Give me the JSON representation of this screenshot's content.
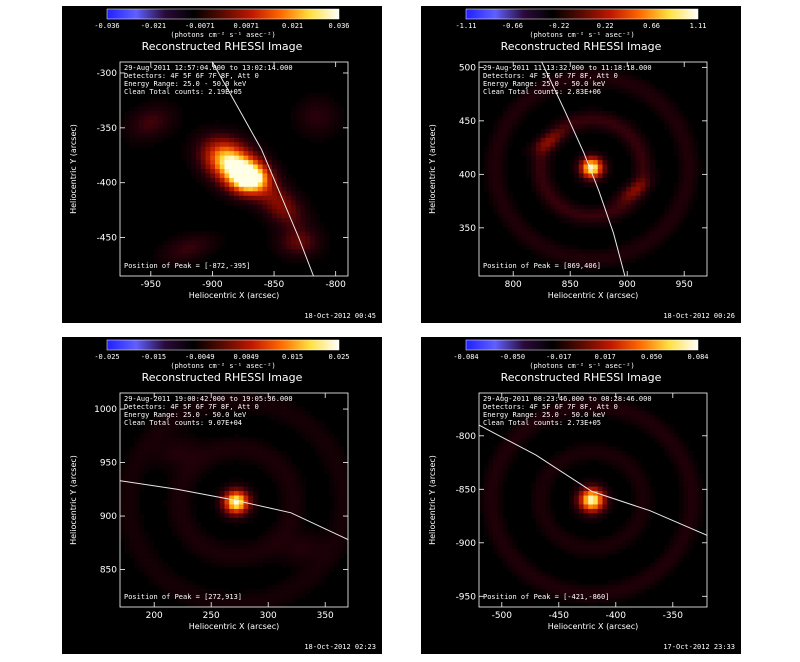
{
  "colors": {
    "background": "#000000",
    "text": "#ffffff",
    "limb": "#e8e8e8",
    "colormap": [
      "#2020ff",
      "#6060ff",
      "#2a0a3a",
      "#000000",
      "#5a0a00",
      "#c01800",
      "#ff6a00",
      "#ffe040",
      "#ffffff"
    ]
  },
  "cbar_unit": "(photons cm⁻² s⁻¹ asec⁻²)",
  "chart_data": [
    {
      "type": "heatmap",
      "title": "Reconstructed RHESSI Image",
      "time_range": "29-Aug-2011 12:57:04.000 to 13:02:14.000",
      "detectors": "Detectors: 4F 5F 6F 7F 8F, Att 0",
      "energy": "Energy Range: 25.0 - 50.0 keV",
      "counts": "Clean     Total counts: 2.19E+05",
      "peak_text": "Position of Peak = [-872,-395]",
      "timestamp": "18-Oct-2012 00:45",
      "colorbar_ticks": [
        "-0.036",
        "-0.021",
        "-0.0071",
        "0.0071",
        "0.021",
        "0.036"
      ],
      "colorbar_range": [
        -0.036,
        0.036
      ],
      "xlabel": "Heliocentric X (arcsec)",
      "ylabel": "Heliocentric Y (arcsec)",
      "xlim": [
        -975,
        -790
      ],
      "ylim": [
        -485,
        -290
      ],
      "xticks": [
        -950,
        -900,
        -850,
        -800
      ],
      "yticks": [
        -450,
        -400,
        -350,
        -300
      ],
      "peak": [
        -872,
        -395
      ],
      "sources": [
        {
          "x": -886,
          "y": -381,
          "sx": 16,
          "sy": 12,
          "amp": 0.95,
          "angle": -40
        },
        {
          "x": -870,
          "y": -396,
          "sx": 11,
          "sy": 10,
          "amp": 1.0,
          "angle": 0
        },
        {
          "x": -845,
          "y": -420,
          "sx": 18,
          "sy": 10,
          "amp": 0.35,
          "angle": -50
        },
        {
          "x": -830,
          "y": -455,
          "sx": 12,
          "sy": 9,
          "amp": 0.25,
          "angle": 0
        },
        {
          "x": -950,
          "y": -345,
          "sx": 14,
          "sy": 10,
          "amp": 0.2,
          "angle": 30
        },
        {
          "x": -815,
          "y": -340,
          "sx": 12,
          "sy": 12,
          "amp": 0.15,
          "angle": 0
        },
        {
          "x": -920,
          "y": -460,
          "sx": 16,
          "sy": 8,
          "amp": 0.18,
          "angle": 20
        }
      ],
      "limb": [
        [
          -900,
          -290
        ],
        [
          -880,
          -330
        ],
        [
          -860,
          -370
        ],
        [
          -845,
          -410
        ],
        [
          -830,
          -450
        ],
        [
          -818,
          -485
        ]
      ]
    },
    {
      "type": "heatmap",
      "title": "Reconstructed RHESSI Image",
      "time_range": "29-Aug-2011 11:13:32.000 to 11:18:18.000",
      "detectors": "Detectors: 4F 5F 6F 7F 8F, Att 0",
      "energy": "Energy Range: 25.0 - 50.0 keV",
      "counts": "Clean     Total counts: 2.83E+06",
      "peak_text": "Position of Peak = [869,406]",
      "timestamp": "18-Oct-2012 00:26",
      "colorbar_ticks": [
        "-1.11",
        "-0.66",
        "-0.22",
        "0.22",
        "0.66",
        "1.11"
      ],
      "colorbar_range": [
        -1.11,
        1.11
      ],
      "xlabel": "Heliocentric X (arcsec)",
      "ylabel": "Heliocentric Y (arcsec)",
      "xlim": [
        770,
        970
      ],
      "ylim": [
        305,
        505
      ],
      "xticks": [
        800,
        850,
        900,
        950
      ],
      "yticks": [
        350,
        400,
        450,
        500
      ],
      "peak": [
        869,
        406
      ],
      "sources": [
        {
          "x": 869,
          "y": 406,
          "sx": 7,
          "sy": 7,
          "amp": 1.0,
          "angle": 0
        },
        {
          "x": 830,
          "y": 430,
          "sx": 12,
          "sy": 5,
          "amp": 0.2,
          "angle": 30
        },
        {
          "x": 905,
          "y": 385,
          "sx": 12,
          "sy": 5,
          "amp": 0.2,
          "angle": 30
        }
      ],
      "rings": [
        {
          "cx": 869,
          "cy": 406,
          "r": 45,
          "w": 6,
          "amp": 0.18
        },
        {
          "cx": 869,
          "cy": 406,
          "r": 85,
          "w": 6,
          "amp": 0.12
        }
      ],
      "limb": [
        [
          825,
          505
        ],
        [
          845,
          460
        ],
        [
          862,
          420
        ],
        [
          875,
          385
        ],
        [
          888,
          345
        ],
        [
          898,
          305
        ]
      ]
    },
    {
      "type": "heatmap",
      "title": "Reconstructed RHESSI Image",
      "time_range": "29-Aug-2011 19:00:42.000 to 19:05:36.000",
      "detectors": "Detectors: 4F 5F 6F 7F 8F, Att 0",
      "energy": "Energy Range: 25.0 - 50.0 keV",
      "counts": "Clean     Total counts: 9.07E+04",
      "peak_text": "Position of Peak = [272,913]",
      "timestamp": "18-Oct-2012 02:23",
      "colorbar_ticks": [
        "-0.025",
        "-0.015",
        "-0.0049",
        "0.0049",
        "0.015",
        "0.025"
      ],
      "colorbar_range": [
        -0.025,
        0.025
      ],
      "xlabel": "Heliocentric X (arcsec)",
      "ylabel": "Heliocentric Y (arcsec)",
      "xlim": [
        170,
        370
      ],
      "ylim": [
        815,
        1015
      ],
      "xticks": [
        200,
        250,
        300,
        350
      ],
      "yticks": [
        850,
        900,
        950,
        1000
      ],
      "peak": [
        272,
        913
      ],
      "sources": [
        {
          "x": 272,
          "y": 913,
          "sx": 8,
          "sy": 8,
          "amp": 1.0,
          "angle": 0
        },
        {
          "x": 220,
          "y": 960,
          "sx": 14,
          "sy": 10,
          "amp": 0.12,
          "angle": 20
        },
        {
          "x": 330,
          "y": 870,
          "sx": 14,
          "sy": 10,
          "amp": 0.12,
          "angle": 20
        }
      ],
      "rings": [
        {
          "cx": 272,
          "cy": 913,
          "r": 50,
          "w": 8,
          "amp": 0.1
        },
        {
          "cx": 272,
          "cy": 913,
          "r": 95,
          "w": 8,
          "amp": 0.08
        }
      ],
      "limb": [
        [
          170,
          933
        ],
        [
          220,
          925
        ],
        [
          270,
          915
        ],
        [
          320,
          903
        ],
        [
          370,
          878
        ]
      ]
    },
    {
      "type": "heatmap",
      "title": "Reconstructed RHESSI Image",
      "time_range": "29-Aug-2011 08:23:46.000 to 08:28:46.000",
      "detectors": "Detectors: 4F 5F 6F 7F 8F, Att 0",
      "energy": "Energy Range: 25.0 - 50.0 keV",
      "counts": "Clean     Total counts: 2.73E+05",
      "peak_text": "Position of Peak = [-421,-860]",
      "timestamp": "17-Oct-2012 23:33",
      "colorbar_ticks": [
        "-0.084",
        "-0.050",
        "-0.017",
        "0.017",
        "0.050",
        "0.084"
      ],
      "colorbar_range": [
        -0.084,
        0.084
      ],
      "xlabel": "Heliocentric X (arcsec)",
      "ylabel": "Heliocentric Y (arcsec)",
      "xlim": [
        -520,
        -320
      ],
      "ylim": [
        -960,
        -760
      ],
      "xticks": [
        -500,
        -450,
        -400,
        -350
      ],
      "yticks": [
        -950,
        -900,
        -850,
        -800
      ],
      "peak": [
        -421,
        -860
      ],
      "sources": [
        {
          "x": -421,
          "y": -860,
          "sx": 8,
          "sy": 8,
          "amp": 1.0,
          "angle": 0
        }
      ],
      "rings": [
        {
          "cx": -421,
          "cy": -860,
          "r": 45,
          "w": 6,
          "amp": 0.1
        },
        {
          "cx": -421,
          "cy": -860,
          "r": 88,
          "w": 6,
          "amp": 0.12
        }
      ],
      "limb": [
        [
          -520,
          -790
        ],
        [
          -470,
          -818
        ],
        [
          -421,
          -852
        ],
        [
          -370,
          -870
        ],
        [
          -320,
          -893
        ]
      ]
    }
  ]
}
